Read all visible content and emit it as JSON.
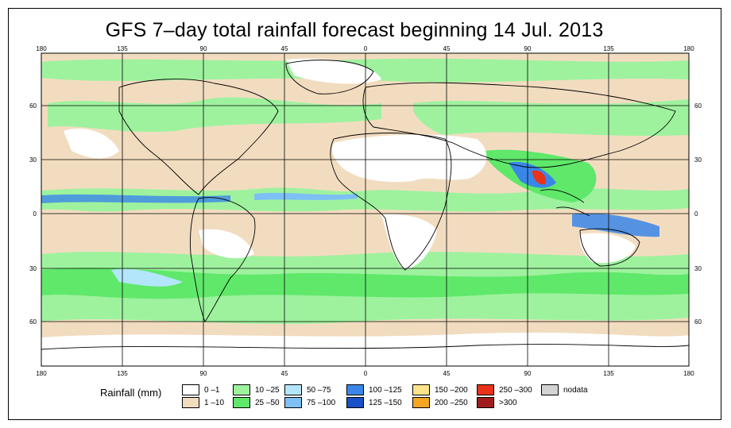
{
  "title": "GFS 7–day total rainfall forecast beginning 14 Jul. 2013",
  "lon_ticks": [
    "180",
    "135",
    "90",
    "45",
    "0",
    "45",
    "90",
    "135",
    "180"
  ],
  "lat_ticks": [
    "60",
    "30",
    "0",
    "30",
    "60"
  ],
  "legend": {
    "label": "Rainfall (mm)",
    "items": [
      {
        "label": "0 –1",
        "color": "#ffffff"
      },
      {
        "label": "1 –10",
        "color": "#f2dcc0"
      },
      {
        "label": "10 –25",
        "color": "#9ef29e"
      },
      {
        "label": "25 –50",
        "color": "#5fe86a"
      },
      {
        "label": "50 –75",
        "color": "#b3e6fb"
      },
      {
        "label": "75 –100",
        "color": "#7cc0f5"
      },
      {
        "label": "100 –125",
        "color": "#3a86e8"
      },
      {
        "label": "125 –150",
        "color": "#1a50c8"
      },
      {
        "label": "150 –200",
        "color": "#fde38a"
      },
      {
        "label": "200 –250",
        "color": "#f5a623"
      },
      {
        "label": "250 –300",
        "color": "#e8321a"
      },
      {
        "label": ">300",
        "color": "#a01c1c"
      },
      {
        "label": "nodata",
        "color": "#d3d3d3"
      }
    ]
  }
}
